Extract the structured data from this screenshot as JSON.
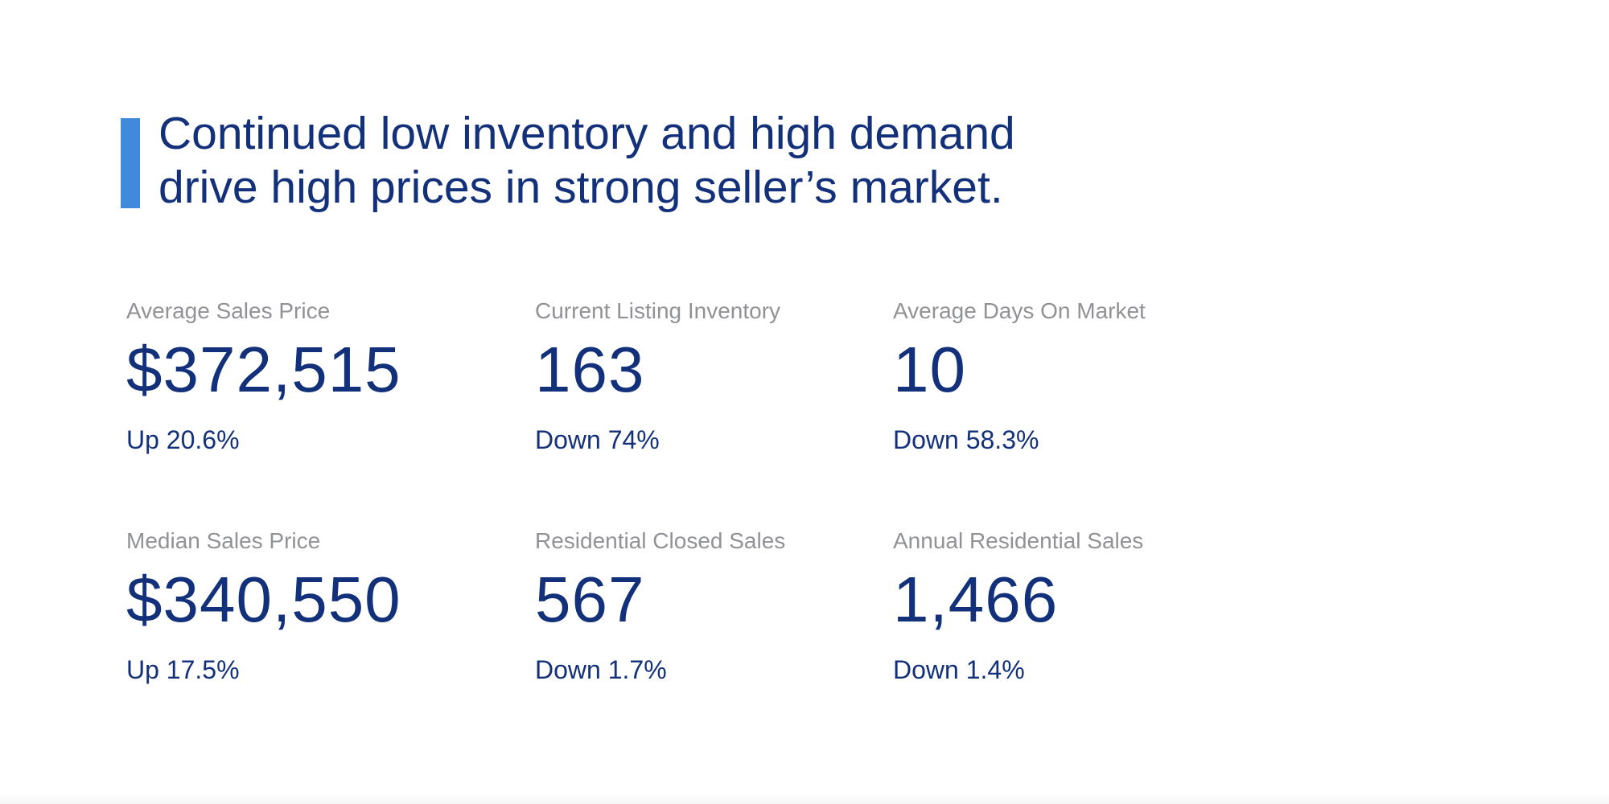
{
  "headline": {
    "line1": "Continued low inventory and high demand",
    "line2": "drive high prices in strong seller’s market."
  },
  "colors": {
    "accent_bar": "#4189da",
    "navy_text": "#13307b",
    "label_gray": "#909296",
    "background": "#ffffff"
  },
  "stats": [
    {
      "label": "Average Sales Price",
      "value": "$372,515",
      "change": "Up 20.6%"
    },
    {
      "label": "Current Listing Inventory",
      "value": "163",
      "change": "Down 74%"
    },
    {
      "label": "Average Days On Market",
      "value": "10",
      "change": "Down 58.3%"
    },
    {
      "label": "Median Sales Price",
      "value": "$340,550",
      "change": "Up 17.5%"
    },
    {
      "label": "Residential Closed Sales",
      "value": "567",
      "change": "Down 1.7%"
    },
    {
      "label": "Annual Residential Sales",
      "value": "1,466",
      "change": "Down 1.4%"
    }
  ]
}
